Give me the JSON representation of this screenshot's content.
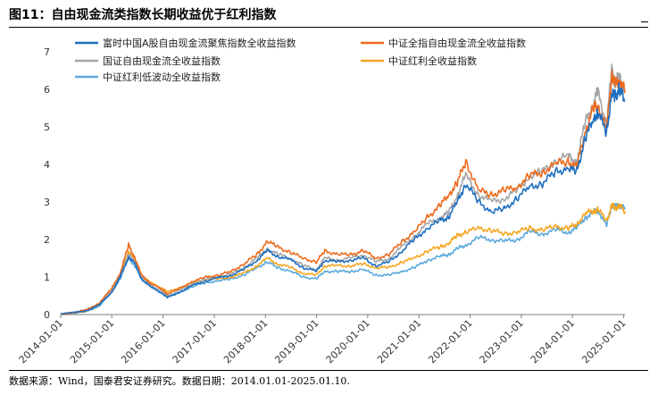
{
  "figure": {
    "title": "图11：自由现金流类指数长期收益优于红利指数",
    "source": "数据来源：Wind，国泰君安证券研究。数据日期：2014.01.01-2025.01.10."
  },
  "chart_data": {
    "type": "line",
    "title": "",
    "xlabel": "",
    "ylabel": "",
    "ylim": [
      0,
      7
    ],
    "yticks": [
      "0",
      "1",
      "2",
      "3",
      "4",
      "5",
      "6",
      "7"
    ],
    "x_ticks": [
      "2014-01-01",
      "2015-01-01",
      "2016-01-01",
      "2017-01-01",
      "2018-01-01",
      "2019-01-01",
      "2020-01-01",
      "2021-01-01",
      "2022-01-01",
      "2023-01-01",
      "2024-01-01",
      "2025-01-01"
    ],
    "x_range": [
      "2014-01-01",
      "2025-01-10"
    ],
    "grid": false,
    "legend_position": "top-left, two columns",
    "series": [
      {
        "name": "富时中国A股自由现金流聚焦指数全收益指数",
        "color": "#1f6fc0",
        "points": [
          [
            "2014-01-01",
            0.02
          ],
          [
            "2014-04-01",
            0.05
          ],
          [
            "2014-07-01",
            0.1
          ],
          [
            "2014-10-01",
            0.25
          ],
          [
            "2015-01-01",
            0.6
          ],
          [
            "2015-03-01",
            1.0
          ],
          [
            "2015-05-01",
            1.55
          ],
          [
            "2015-06-15",
            1.35
          ],
          [
            "2015-08-01",
            0.95
          ],
          [
            "2015-10-01",
            0.75
          ],
          [
            "2016-01-01",
            0.55
          ],
          [
            "2016-02-01",
            0.45
          ],
          [
            "2016-05-01",
            0.6
          ],
          [
            "2016-08-01",
            0.78
          ],
          [
            "2016-11-01",
            0.9
          ],
          [
            "2017-02-01",
            0.98
          ],
          [
            "2017-05-01",
            1.05
          ],
          [
            "2017-08-01",
            1.2
          ],
          [
            "2017-11-01",
            1.45
          ],
          [
            "2018-01-15",
            1.7
          ],
          [
            "2018-04-01",
            1.55
          ],
          [
            "2018-07-01",
            1.45
          ],
          [
            "2018-10-01",
            1.25
          ],
          [
            "2018-12-31",
            1.15
          ],
          [
            "2019-03-01",
            1.45
          ],
          [
            "2019-06-01",
            1.4
          ],
          [
            "2019-09-01",
            1.45
          ],
          [
            "2019-12-01",
            1.5
          ],
          [
            "2020-03-01",
            1.3
          ],
          [
            "2020-06-01",
            1.4
          ],
          [
            "2020-09-01",
            1.7
          ],
          [
            "2020-12-01",
            2.0
          ],
          [
            "2021-03-01",
            2.3
          ],
          [
            "2021-06-01",
            2.5
          ],
          [
            "2021-08-01",
            2.6
          ],
          [
            "2021-10-01",
            3.0
          ],
          [
            "2021-12-01",
            3.5
          ],
          [
            "2022-03-01",
            3.0
          ],
          [
            "2022-06-01",
            2.75
          ],
          [
            "2022-09-01",
            2.8
          ],
          [
            "2022-12-01",
            3.1
          ],
          [
            "2023-03-01",
            3.4
          ],
          [
            "2023-06-01",
            3.5
          ],
          [
            "2023-09-01",
            3.8
          ],
          [
            "2023-12-01",
            3.9
          ],
          [
            "2024-02-01",
            3.8
          ],
          [
            "2024-04-01",
            4.7
          ],
          [
            "2024-06-01",
            5.2
          ],
          [
            "2024-07-01",
            5.4
          ],
          [
            "2024-09-01",
            4.85
          ],
          [
            "2024-10-08",
            5.9
          ],
          [
            "2024-11-01",
            5.8
          ],
          [
            "2024-12-01",
            6.0
          ],
          [
            "2025-01-10",
            5.7
          ]
        ]
      },
      {
        "name": "中证全指自由现金流全收益指数",
        "color": "#ed6a1c",
        "points": [
          [
            "2014-01-01",
            0.0
          ],
          [
            "2014-04-01",
            0.05
          ],
          [
            "2014-07-01",
            0.12
          ],
          [
            "2014-10-01",
            0.3
          ],
          [
            "2015-01-01",
            0.7
          ],
          [
            "2015-03-01",
            1.1
          ],
          [
            "2015-05-01",
            1.85
          ],
          [
            "2015-06-15",
            1.5
          ],
          [
            "2015-08-01",
            1.05
          ],
          [
            "2015-10-01",
            0.85
          ],
          [
            "2016-01-01",
            0.65
          ],
          [
            "2016-02-01",
            0.55
          ],
          [
            "2016-05-01",
            0.7
          ],
          [
            "2016-08-01",
            0.88
          ],
          [
            "2016-11-01",
            1.0
          ],
          [
            "2017-02-01",
            1.05
          ],
          [
            "2017-05-01",
            1.15
          ],
          [
            "2017-08-01",
            1.35
          ],
          [
            "2017-11-01",
            1.6
          ],
          [
            "2018-01-15",
            1.95
          ],
          [
            "2018-04-01",
            1.8
          ],
          [
            "2018-07-01",
            1.65
          ],
          [
            "2018-10-01",
            1.5
          ],
          [
            "2018-12-31",
            1.4
          ],
          [
            "2019-03-01",
            1.7
          ],
          [
            "2019-06-01",
            1.6
          ],
          [
            "2019-09-01",
            1.6
          ],
          [
            "2019-12-01",
            1.7
          ],
          [
            "2020-03-01",
            1.5
          ],
          [
            "2020-06-01",
            1.6
          ],
          [
            "2020-09-01",
            1.95
          ],
          [
            "2020-12-01",
            2.2
          ],
          [
            "2021-03-01",
            2.6
          ],
          [
            "2021-06-01",
            2.9
          ],
          [
            "2021-08-01",
            3.2
          ],
          [
            "2021-10-01",
            3.5
          ],
          [
            "2021-12-01",
            4.1
          ],
          [
            "2022-03-01",
            3.3
          ],
          [
            "2022-06-01",
            3.2
          ],
          [
            "2022-09-01",
            3.3
          ],
          [
            "2022-12-01",
            3.4
          ],
          [
            "2023-03-01",
            3.7
          ],
          [
            "2023-06-01",
            3.8
          ],
          [
            "2023-09-01",
            4.0
          ],
          [
            "2023-12-01",
            4.1
          ],
          [
            "2024-02-01",
            3.9
          ],
          [
            "2024-04-01",
            4.9
          ],
          [
            "2024-06-01",
            5.5
          ],
          [
            "2024-07-01",
            5.6
          ],
          [
            "2024-09-01",
            4.9
          ],
          [
            "2024-10-08",
            6.4
          ],
          [
            "2024-11-01",
            6.1
          ],
          [
            "2024-12-01",
            6.3
          ],
          [
            "2025-01-10",
            5.9
          ]
        ]
      },
      {
        "name": "国证自由现金流全收益指数",
        "color": "#a5a5a5",
        "points": [
          [
            "2014-01-01",
            0.02
          ],
          [
            "2014-04-01",
            0.06
          ],
          [
            "2014-07-01",
            0.12
          ],
          [
            "2014-10-01",
            0.28
          ],
          [
            "2015-01-01",
            0.65
          ],
          [
            "2015-03-01",
            1.05
          ],
          [
            "2015-05-01",
            1.6
          ],
          [
            "2015-06-15",
            1.4
          ],
          [
            "2015-08-01",
            1.0
          ],
          [
            "2015-10-01",
            0.8
          ],
          [
            "2016-01-01",
            0.6
          ],
          [
            "2016-02-01",
            0.5
          ],
          [
            "2016-05-01",
            0.65
          ],
          [
            "2016-08-01",
            0.82
          ],
          [
            "2016-11-01",
            0.95
          ],
          [
            "2017-02-01",
            1.0
          ],
          [
            "2017-05-01",
            1.08
          ],
          [
            "2017-08-01",
            1.25
          ],
          [
            "2017-11-01",
            1.5
          ],
          [
            "2018-01-15",
            1.75
          ],
          [
            "2018-04-01",
            1.6
          ],
          [
            "2018-07-01",
            1.5
          ],
          [
            "2018-10-01",
            1.3
          ],
          [
            "2018-12-31",
            1.2
          ],
          [
            "2019-03-01",
            1.5
          ],
          [
            "2019-06-01",
            1.45
          ],
          [
            "2019-09-01",
            1.5
          ],
          [
            "2019-12-01",
            1.6
          ],
          [
            "2020-03-01",
            1.4
          ],
          [
            "2020-06-01",
            1.5
          ],
          [
            "2020-09-01",
            1.8
          ],
          [
            "2020-12-01",
            2.1
          ],
          [
            "2021-03-01",
            2.4
          ],
          [
            "2021-06-01",
            2.6
          ],
          [
            "2021-08-01",
            2.7
          ],
          [
            "2021-10-01",
            3.2
          ],
          [
            "2021-12-01",
            3.7
          ],
          [
            "2022-03-01",
            3.2
          ],
          [
            "2022-06-01",
            3.0
          ],
          [
            "2022-09-01",
            3.1
          ],
          [
            "2022-12-01",
            3.3
          ],
          [
            "2023-03-01",
            3.7
          ],
          [
            "2023-06-01",
            3.8
          ],
          [
            "2023-09-01",
            4.1
          ],
          [
            "2023-12-01",
            4.2
          ],
          [
            "2024-02-01",
            4.1
          ],
          [
            "2024-04-01",
            5.1
          ],
          [
            "2024-06-01",
            5.7
          ],
          [
            "2024-07-01",
            5.9
          ],
          [
            "2024-09-01",
            5.1
          ],
          [
            "2024-10-08",
            6.5
          ],
          [
            "2024-11-01",
            6.2
          ],
          [
            "2024-12-01",
            6.3
          ],
          [
            "2025-01-10",
            6.0
          ]
        ]
      },
      {
        "name": "中证红利全收益指数",
        "color": "#f5a623",
        "points": [
          [
            "2014-01-01",
            0.0
          ],
          [
            "2014-04-01",
            0.04
          ],
          [
            "2014-07-01",
            0.1
          ],
          [
            "2014-10-01",
            0.25
          ],
          [
            "2015-01-01",
            0.65
          ],
          [
            "2015-03-01",
            1.05
          ],
          [
            "2015-05-01",
            1.7
          ],
          [
            "2015-06-15",
            1.45
          ],
          [
            "2015-08-01",
            1.05
          ],
          [
            "2015-10-01",
            0.85
          ],
          [
            "2016-01-01",
            0.7
          ],
          [
            "2016-02-01",
            0.6
          ],
          [
            "2016-05-01",
            0.72
          ],
          [
            "2016-08-01",
            0.85
          ],
          [
            "2016-11-01",
            0.95
          ],
          [
            "2017-02-01",
            0.95
          ],
          [
            "2017-05-01",
            1.0
          ],
          [
            "2017-08-01",
            1.1
          ],
          [
            "2017-11-01",
            1.3
          ],
          [
            "2018-01-15",
            1.5
          ],
          [
            "2018-04-01",
            1.35
          ],
          [
            "2018-07-01",
            1.25
          ],
          [
            "2018-10-01",
            1.1
          ],
          [
            "2018-12-31",
            1.05
          ],
          [
            "2019-03-01",
            1.3
          ],
          [
            "2019-06-01",
            1.3
          ],
          [
            "2019-09-01",
            1.3
          ],
          [
            "2019-12-01",
            1.35
          ],
          [
            "2020-03-01",
            1.25
          ],
          [
            "2020-06-01",
            1.25
          ],
          [
            "2020-09-01",
            1.4
          ],
          [
            "2020-12-01",
            1.5
          ],
          [
            "2021-03-01",
            1.7
          ],
          [
            "2021-06-01",
            1.8
          ],
          [
            "2021-08-01",
            1.9
          ],
          [
            "2021-10-01",
            2.1
          ],
          [
            "2021-12-01",
            2.2
          ],
          [
            "2022-03-01",
            2.3
          ],
          [
            "2022-06-01",
            2.25
          ],
          [
            "2022-09-01",
            2.15
          ],
          [
            "2022-12-01",
            2.2
          ],
          [
            "2023-03-01",
            2.3
          ],
          [
            "2023-06-01",
            2.25
          ],
          [
            "2023-09-01",
            2.35
          ],
          [
            "2023-12-01",
            2.3
          ],
          [
            "2024-02-01",
            2.4
          ],
          [
            "2024-04-01",
            2.7
          ],
          [
            "2024-06-01",
            2.75
          ],
          [
            "2024-07-01",
            2.8
          ],
          [
            "2024-09-01",
            2.5
          ],
          [
            "2024-10-08",
            2.9
          ],
          [
            "2024-11-01",
            2.85
          ],
          [
            "2024-12-01",
            2.9
          ],
          [
            "2025-01-10",
            2.75
          ]
        ]
      },
      {
        "name": "中证红利低波动全收益指数",
        "color": "#5aa9dc",
        "points": [
          [
            "2014-01-01",
            0.0
          ],
          [
            "2014-04-01",
            0.03
          ],
          [
            "2014-07-01",
            0.08
          ],
          [
            "2014-10-01",
            0.22
          ],
          [
            "2015-01-01",
            0.6
          ],
          [
            "2015-03-01",
            0.95
          ],
          [
            "2015-05-01",
            1.5
          ],
          [
            "2015-06-15",
            1.3
          ],
          [
            "2015-08-01",
            0.95
          ],
          [
            "2015-10-01",
            0.75
          ],
          [
            "2016-01-01",
            0.55
          ],
          [
            "2016-02-01",
            0.48
          ],
          [
            "2016-05-01",
            0.6
          ],
          [
            "2016-08-01",
            0.75
          ],
          [
            "2016-11-01",
            0.85
          ],
          [
            "2017-02-01",
            0.9
          ],
          [
            "2017-05-01",
            0.95
          ],
          [
            "2017-08-01",
            1.05
          ],
          [
            "2017-11-01",
            1.25
          ],
          [
            "2018-01-15",
            1.4
          ],
          [
            "2018-04-01",
            1.25
          ],
          [
            "2018-07-01",
            1.15
          ],
          [
            "2018-10-01",
            1.0
          ],
          [
            "2018-12-31",
            0.95
          ],
          [
            "2019-03-01",
            1.15
          ],
          [
            "2019-06-01",
            1.15
          ],
          [
            "2019-09-01",
            1.15
          ],
          [
            "2019-12-01",
            1.2
          ],
          [
            "2020-03-01",
            1.05
          ],
          [
            "2020-06-01",
            1.05
          ],
          [
            "2020-09-01",
            1.15
          ],
          [
            "2020-12-01",
            1.25
          ],
          [
            "2021-03-01",
            1.45
          ],
          [
            "2021-06-01",
            1.55
          ],
          [
            "2021-08-01",
            1.6
          ],
          [
            "2021-10-01",
            1.75
          ],
          [
            "2021-12-01",
            1.85
          ],
          [
            "2022-03-01",
            2.05
          ],
          [
            "2022-06-01",
            2.0
          ],
          [
            "2022-09-01",
            1.95
          ],
          [
            "2022-12-01",
            2.0
          ],
          [
            "2023-03-01",
            2.2
          ],
          [
            "2023-06-01",
            2.15
          ],
          [
            "2023-09-01",
            2.25
          ],
          [
            "2023-12-01",
            2.2
          ],
          [
            "2024-02-01",
            2.3
          ],
          [
            "2024-04-01",
            2.6
          ],
          [
            "2024-06-01",
            2.7
          ],
          [
            "2024-07-01",
            2.8
          ],
          [
            "2024-09-01",
            2.35
          ],
          [
            "2024-10-08",
            2.95
          ],
          [
            "2024-11-01",
            2.85
          ],
          [
            "2024-12-01",
            2.95
          ],
          [
            "2025-01-10",
            2.8
          ]
        ]
      }
    ]
  }
}
